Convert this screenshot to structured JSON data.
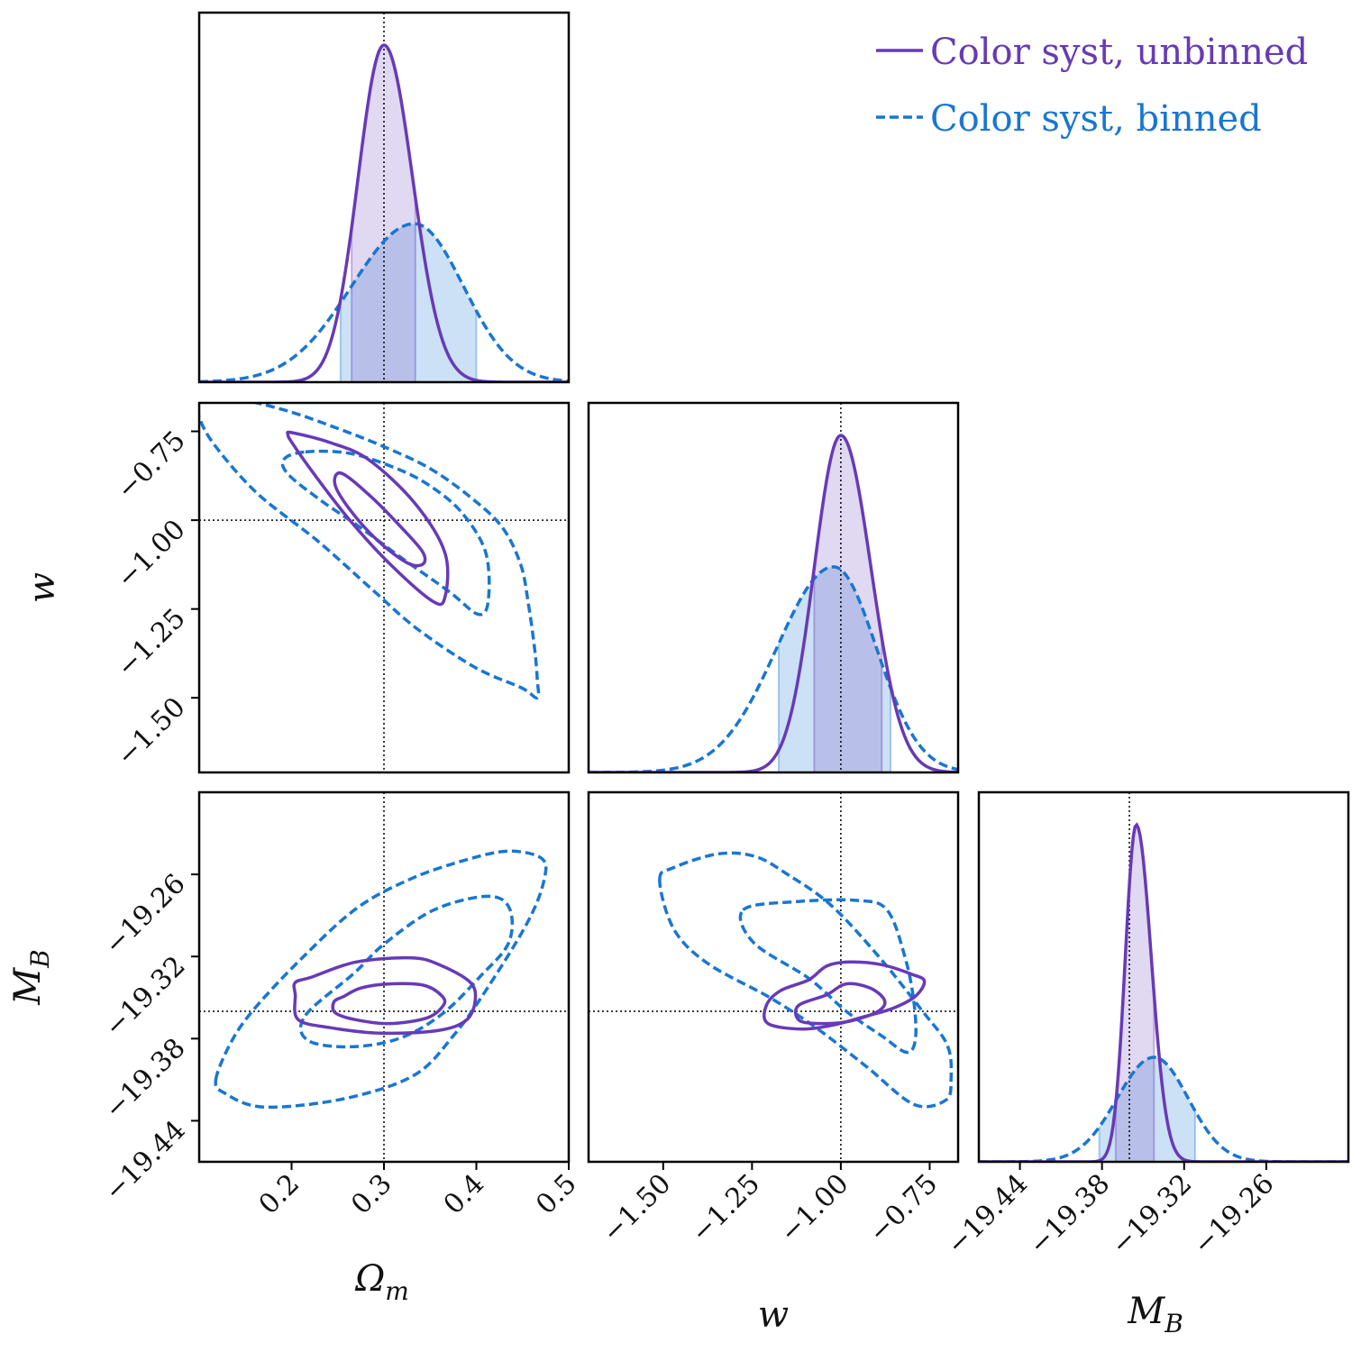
{
  "colors": {
    "unbinned": "#673ab7",
    "unbinned_fill": "#d9cdf0",
    "binned": "#1976d2",
    "binned_fill": "#bcd7f2",
    "overlap_fill": "#b0b8e6",
    "truth_line": "#000000",
    "frame": "#000000"
  },
  "legend": {
    "placement": "top-right",
    "entries": [
      {
        "label": "Color syst, unbinned",
        "style": "solid",
        "color": "#673ab7"
      },
      {
        "label": "Color syst, binned",
        "style": "dashed",
        "color": "#1976d2"
      }
    ]
  },
  "axis_labels": {
    "om": "Ωm",
    "w": "w",
    "mb": "MB"
  },
  "chart_data": {
    "type": "corner",
    "parameters": [
      {
        "key": "om",
        "label": "Ωm",
        "range": [
          0.1,
          0.5
        ],
        "ticks": [
          0.2,
          0.3,
          0.4,
          0.5
        ],
        "tick_labels": [
          "0.2",
          "0.3",
          "0.4",
          "0.5"
        ],
        "truth": 0.3
      },
      {
        "key": "w",
        "label": "w",
        "range": [
          -1.71,
          -0.67
        ],
        "ticks": [
          -1.5,
          -1.25,
          -1.0,
          -0.75
        ],
        "tick_labels": [
          "−1.50",
          "−1.25",
          "−1.00",
          "−0.75"
        ],
        "truth": -1.0
      },
      {
        "key": "mb",
        "label": "MB",
        "range": [
          -19.47,
          -19.2
        ],
        "ticks": [
          -19.44,
          -19.38,
          -19.32,
          -19.26
        ],
        "tick_labels": [
          "−19.44",
          "−19.38",
          "−19.32",
          "−19.26"
        ],
        "truth": -19.36
      }
    ],
    "series": [
      {
        "name": "Color syst, unbinned",
        "style": "solid",
        "om": {
          "peak": 0.3,
          "sigma_left": 0.028,
          "sigma_right": 0.031,
          "height": 1.0,
          "interval": [
            0.265,
            0.334
          ]
        },
        "w": {
          "peak": -1.0,
          "sigma_left": 0.075,
          "sigma_right": 0.085,
          "height": 1.0,
          "interval": [
            -1.075,
            -0.885
          ]
        },
        "mb": {
          "peak": -19.355,
          "sigma_left": 0.008,
          "sigma_right": 0.011,
          "height": 1.0,
          "interval": [
            -19.37,
            -19.342
          ]
        },
        "contours": {
          "om_w": [
            [
              [
                0.254,
                -0.868
              ],
              [
                0.286,
                -0.934
              ],
              [
                0.319,
                -1.021
              ],
              [
                0.342,
                -1.09
              ],
              [
                0.342,
                -1.124
              ],
              [
                0.325,
                -1.12
              ],
              [
                0.293,
                -1.057
              ],
              [
                0.263,
                -0.97
              ],
              [
                0.247,
                -0.9
              ]
            ],
            [
              [
                0.201,
                -0.754
              ],
              [
                0.242,
                -0.782
              ],
              [
                0.283,
                -0.829
              ],
              [
                0.333,
                -0.951
              ],
              [
                0.366,
                -1.092
              ],
              [
                0.366,
                -1.217
              ],
              [
                0.352,
                -1.227
              ],
              [
                0.304,
                -1.117
              ],
              [
                0.262,
                -0.997
              ],
              [
                0.224,
                -0.869
              ],
              [
                0.201,
                -0.784
              ],
              [
                0.196,
                -0.759
              ]
            ]
          ],
          "om_mb": [
            [
              [
                0.257,
                -19.349
              ],
              [
                0.275,
                -19.343
              ],
              [
                0.306,
                -19.34
              ],
              [
                0.343,
                -19.341
              ],
              [
                0.363,
                -19.349
              ],
              [
                0.364,
                -19.356
              ],
              [
                0.346,
                -19.365
              ],
              [
                0.305,
                -19.369
              ],
              [
                0.268,
                -19.366
              ],
              [
                0.247,
                -19.361
              ],
              [
                0.246,
                -19.353
              ]
            ],
            [
              [
                0.222,
                -19.335
              ],
              [
                0.27,
                -19.324
              ],
              [
                0.33,
                -19.321
              ],
              [
                0.36,
                -19.326
              ],
              [
                0.392,
                -19.338
              ],
              [
                0.399,
                -19.35
              ],
              [
                0.39,
                -19.366
              ],
              [
                0.359,
                -19.374
              ],
              [
                0.296,
                -19.376
              ],
              [
                0.242,
                -19.372
              ],
              [
                0.207,
                -19.366
              ],
              [
                0.204,
                -19.348
              ],
              [
                0.204,
                -19.339
              ]
            ]
          ],
          "w_mb": [
            [
              [
                -1.04,
                -19.348
              ],
              [
                -0.985,
                -19.34
              ],
              [
                -0.918,
                -19.343
              ],
              [
                -0.877,
                -19.352
              ],
              [
                -0.895,
                -19.36
              ],
              [
                -0.97,
                -19.367
              ],
              [
                -1.04,
                -19.369
              ],
              [
                -1.115,
                -19.367
              ],
              [
                -1.12,
                -19.356
              ]
            ],
            [
              [
                -1.09,
                -19.337
              ],
              [
                -1.04,
                -19.327
              ],
              [
                -0.975,
                -19.324
              ],
              [
                -0.885,
                -19.326
              ],
              [
                -0.8,
                -19.333
              ],
              [
                -0.765,
                -19.338
              ],
              [
                -0.79,
                -19.349
              ],
              [
                -0.855,
                -19.358
              ],
              [
                -0.935,
                -19.364
              ],
              [
                -1.02,
                -19.37
              ],
              [
                -1.11,
                -19.373
              ],
              [
                -1.205,
                -19.369
              ],
              [
                -1.21,
                -19.356
              ],
              [
                -1.17,
                -19.345
              ]
            ]
          ]
        }
      },
      {
        "name": "Color syst, binned",
        "style": "dashed",
        "om": {
          "peak": 0.333,
          "sigma_left": 0.068,
          "sigma_right": 0.053,
          "height": 0.47,
          "interval": [
            0.253,
            0.4
          ]
        },
        "w": {
          "peak": -1.02,
          "sigma_left": 0.16,
          "sigma_right": 0.12,
          "height": 0.61,
          "interval": [
            -1.175,
            -0.86
          ]
        },
        "mb": {
          "peak": -19.342,
          "sigma_left": 0.027,
          "sigma_right": 0.025,
          "height": 0.31,
          "interval": [
            -19.382,
            -19.312
          ]
        },
        "contours": {
          "om_w": [
            [
              [
                0.215,
                -0.808
              ],
              [
                0.263,
                -0.812
              ],
              [
                0.312,
                -0.853
              ],
              [
                0.349,
                -0.902
              ],
              [
                0.384,
                -0.978
              ],
              [
                0.41,
                -1.09
              ],
              [
                0.413,
                -1.225
              ],
              [
                0.402,
                -1.265
              ],
              [
                0.37,
                -1.2
              ],
              [
                0.32,
                -1.108
              ],
              [
                0.273,
                -1.018
              ],
              [
                0.232,
                -0.945
              ],
              [
                0.196,
                -0.87
              ],
              [
                0.192,
                -0.828
              ]
            ],
            [
              [
                0.1,
                -0.665
              ],
              [
                0.141,
                -0.66
              ],
              [
                0.196,
                -0.693
              ],
              [
                0.25,
                -0.742
              ],
              [
                0.297,
                -0.79
              ],
              [
                0.348,
                -0.852
              ],
              [
                0.393,
                -0.934
              ],
              [
                0.428,
                -1.02
              ],
              [
                0.448,
                -1.125
              ],
              [
                0.456,
                -1.23
              ],
              [
                0.463,
                -1.36
              ],
              [
                0.466,
                -1.45
              ],
              [
                0.466,
                -1.5
              ],
              [
                0.449,
                -1.472
              ],
              [
                0.399,
                -1.415
              ],
              [
                0.336,
                -1.306
              ],
              [
                0.288,
                -1.197
              ],
              [
                0.228,
                -1.058
              ],
              [
                0.163,
                -0.925
              ],
              [
                0.117,
                -0.79
              ],
              [
                0.1,
                -0.71
              ]
            ]
          ],
          "om_mb": [
            [
              [
                0.215,
                -19.363
              ],
              [
                0.268,
                -19.332
              ],
              [
                0.3,
                -19.311
              ],
              [
                0.354,
                -19.286
              ],
              [
                0.412,
                -19.276
              ],
              [
                0.436,
                -19.285
              ],
              [
                0.435,
                -19.31
              ],
              [
                0.405,
                -19.334
              ],
              [
                0.363,
                -19.362
              ],
              [
                0.316,
                -19.38
              ],
              [
                0.262,
                -19.386
              ],
              [
                0.217,
                -19.381
              ]
            ],
            [
              [
                0.118,
                -19.41
              ],
              [
                0.135,
                -19.382
              ],
              [
                0.16,
                -19.358
              ],
              [
                0.21,
                -19.322
              ],
              [
                0.27,
                -19.285
              ],
              [
                0.33,
                -19.263
              ],
              [
                0.391,
                -19.249
              ],
              [
                0.435,
                -19.243
              ],
              [
                0.47,
                -19.248
              ],
              [
                0.474,
                -19.262
              ],
              [
                0.457,
                -19.293
              ],
              [
                0.413,
                -19.342
              ],
              [
                0.375,
                -19.378
              ],
              [
                0.332,
                -19.407
              ],
              [
                0.256,
                -19.424
              ],
              [
                0.17,
                -19.43
              ],
              [
                0.128,
                -19.42
              ]
            ]
          ],
          "w_mb": [
            [
              [
                -1.275,
                -19.286
              ],
              [
                -1.13,
                -19.28
              ],
              [
                -0.955,
                -19.279
              ],
              [
                -0.87,
                -19.286
              ],
              [
                -0.82,
                -19.32
              ],
              [
                -0.795,
                -19.352
              ],
              [
                -0.79,
                -19.38
              ],
              [
                -0.815,
                -19.39
              ],
              [
                -0.885,
                -19.378
              ],
              [
                -0.985,
                -19.36
              ],
              [
                -1.09,
                -19.336
              ],
              [
                -1.245,
                -19.31
              ]
            ],
            [
              [
                -1.51,
                -19.264
              ],
              [
                -1.47,
                -19.255
              ],
              [
                -1.345,
                -19.245
              ],
              [
                -1.24,
                -19.247
              ],
              [
                -1.15,
                -19.26
              ],
              [
                -1.03,
                -19.282
              ],
              [
                -0.9,
                -19.318
              ],
              [
                -0.77,
                -19.36
              ],
              [
                -0.7,
                -19.385
              ],
              [
                -0.69,
                -19.41
              ],
              [
                -0.705,
                -19.425
              ],
              [
                -0.795,
                -19.428
              ],
              [
                -0.93,
                -19.4
              ],
              [
                -1.07,
                -19.372
              ],
              [
                -1.2,
                -19.35
              ],
              [
                -1.375,
                -19.325
              ],
              [
                -1.47,
                -19.3
              ]
            ]
          ]
        }
      }
    ]
  }
}
